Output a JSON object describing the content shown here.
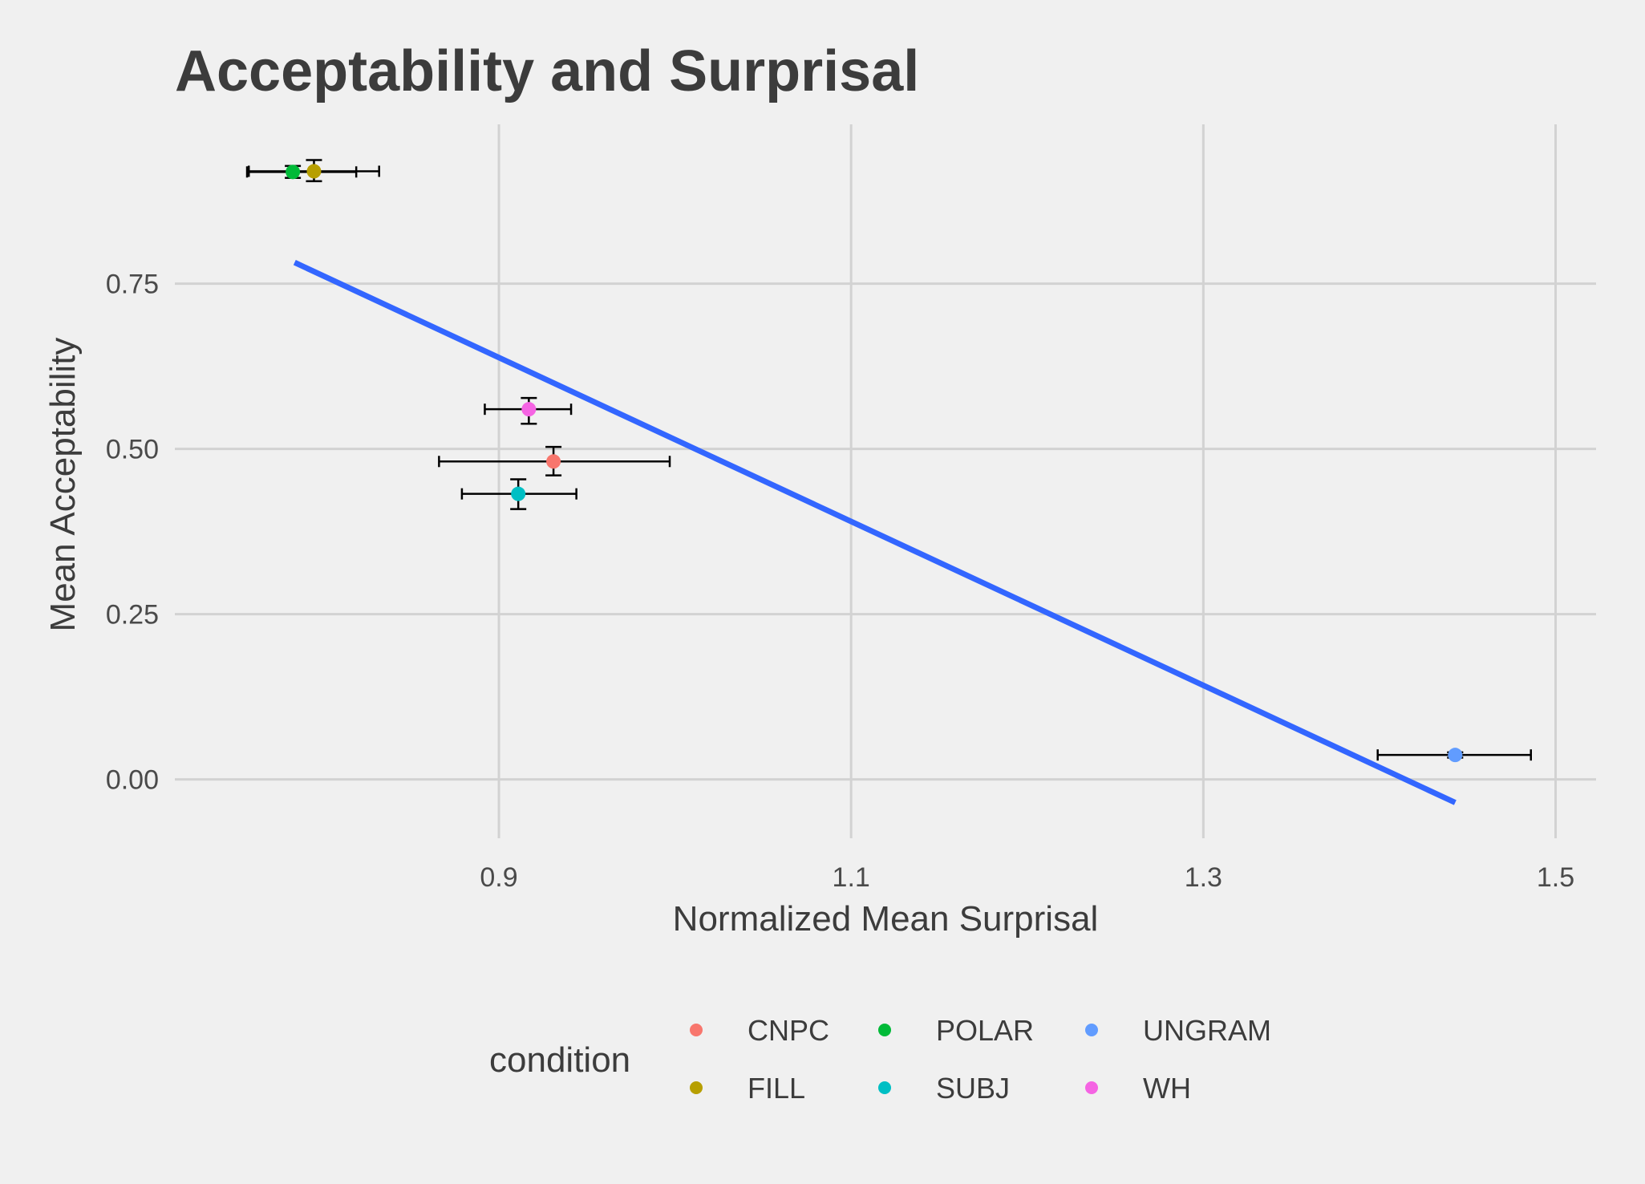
{
  "chart_data": {
    "type": "scatter",
    "title": "Acceptability and Surprisal",
    "xlabel": "Normalized Mean Surprisal",
    "ylabel": "Mean Acceptability",
    "xlim": [
      0.716,
      1.523
    ],
    "ylim": [
      -0.089,
      0.991
    ],
    "x_ticks": [
      0.9,
      1.1,
      1.3,
      1.5
    ],
    "x_tick_labels": [
      "0.9",
      "1.1",
      "1.3",
      "1.5"
    ],
    "y_ticks": [
      0.0,
      0.25,
      0.5,
      0.75
    ],
    "y_tick_labels": [
      "0.00",
      "0.25",
      "0.50",
      "0.75"
    ],
    "grid": true,
    "legend": {
      "title": "condition",
      "position": "bottom"
    },
    "series": [
      {
        "name": "CNPC",
        "color": "#F8766D",
        "x": 0.931,
        "y": 0.481,
        "x_err": [
          0.866,
          0.997
        ],
        "y_err": [
          0.46,
          0.503
        ]
      },
      {
        "name": "FILL",
        "color": "#B79F00",
        "x": 0.795,
        "y": 0.92,
        "x_err": [
          0.758,
          0.832
        ],
        "y_err": [
          0.905,
          0.937
        ]
      },
      {
        "name": "POLAR",
        "color": "#00BA38",
        "x": 0.783,
        "y": 0.919,
        "x_err": [
          0.757,
          0.819
        ],
        "y_err": [
          0.91,
          0.928
        ]
      },
      {
        "name": "SUBJ",
        "color": "#00BFC4",
        "x": 0.911,
        "y": 0.432,
        "x_err": [
          0.879,
          0.944
        ],
        "y_err": [
          0.409,
          0.454
        ]
      },
      {
        "name": "UNGRAM",
        "color": "#619CFF",
        "x": 1.443,
        "y": 0.037,
        "x_err": [
          1.399,
          1.486
        ],
        "y_err": [
          0.033,
          0.041
        ]
      },
      {
        "name": "WH",
        "color": "#F564E3",
        "x": 0.917,
        "y": 0.56,
        "x_err": [
          0.892,
          0.941
        ],
        "y_err": [
          0.538,
          0.577
        ]
      }
    ],
    "fit_line": {
      "type": "linear",
      "color": "#3366FF",
      "x": [
        0.784,
        1.443
      ],
      "y": [
        0.782,
        -0.035
      ]
    }
  }
}
